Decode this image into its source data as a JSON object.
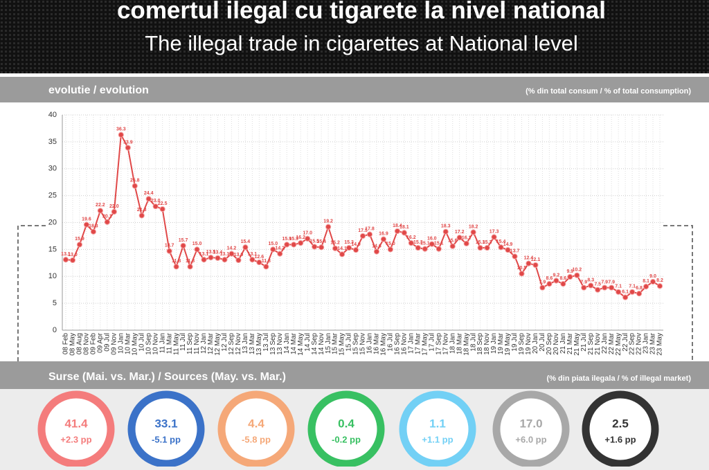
{
  "header": {
    "title": "comertul ilegal cu tigarete la nivel national",
    "subtitle": "The illegal trade in cigarettes at National level"
  },
  "chart_data": {
    "type": "line",
    "title": "evolutie / evolution",
    "unit_note": "(% din total consum / % of total consumption)",
    "color": "#e04848",
    "grid": true,
    "categories": [
      "08 Feb",
      "08 May",
      "08 Aug",
      "08 Nov",
      "09 Feb",
      "09 Apr",
      "09 Jul",
      "09 Nov",
      "10 Jan",
      "10 Mar",
      "10 May",
      "10 Jul",
      "10 Sep",
      "10 Nov",
      "11 Jan",
      "11 Mar",
      "11 May",
      "11 Jul",
      "11 Sep",
      "11 Nov",
      "12 Jan",
      "12 Mar",
      "12 May",
      "12 Jul",
      "12 Sep",
      "12 Nov",
      "13 Jan",
      "13 Mar",
      "13 May",
      "13 Jul",
      "13 Sep",
      "13 Nov",
      "14 Jan",
      "14 Mar",
      "14 May",
      "14 Jul",
      "14 Sep",
      "14 Nov",
      "15 Jan",
      "15 Mar",
      "15 May",
      "15 Jul",
      "15 Sep",
      "15 Nov",
      "16 Jan",
      "16 Mar",
      "16 May",
      "16 Jul",
      "16 Sep",
      "16 Nov",
      "17 Jan",
      "17 Mar",
      "17 May",
      "17 Jul",
      "17 Sep",
      "17 Nov",
      "18 Jan",
      "18 Mar",
      "18 May",
      "18 Jul",
      "18 Sep",
      "18 Nov",
      "19 Jan",
      "19 Mar",
      "19 May",
      "19 Jul",
      "19 Sep",
      "19 Nov",
      "20 Jan",
      "20 Jul",
      "20 Sep",
      "20 Nov",
      "21 Jan",
      "21 Mar",
      "21 May",
      "21 Jul",
      "21 Sep",
      "21 Nov",
      "22 Jan",
      "22 Mar",
      "22 May",
      "22 Jul",
      "22 Sep",
      "22 Nov",
      "23 Jan",
      "23 Mar",
      "23 May"
    ],
    "values": [
      13.1,
      13.0,
      15.9,
      19.6,
      18.3,
      22.2,
      20.1,
      22.0,
      36.3,
      33.9,
      26.8,
      21.3,
      24.4,
      23.0,
      22.5,
      14.7,
      11.8,
      15.7,
      11.8,
      15.0,
      13.1,
      13.5,
      13.4,
      13.1,
      14.2,
      13.0,
      15.4,
      13.1,
      12.6,
      11.8,
      15.0,
      14.2,
      15.9,
      15.9,
      16.2,
      17.0,
      15.5,
      15.4,
      19.2,
      15.2,
      14.1,
      15.3,
      14.9,
      17.5,
      17.8,
      14.6,
      16.9,
      15.0,
      18.4,
      18.1,
      16.2,
      15.3,
      15.1,
      16.0,
      15.1,
      18.3,
      15.6,
      17.2,
      16.1,
      18.2,
      15.3,
      15.3,
      17.3,
      15.4,
      14.9,
      13.7,
      10.5,
      12.4,
      12.1,
      7.9,
      8.6,
      9.2,
      8.6,
      9.9,
      10.2,
      7.9,
      8.3,
      7.5,
      7.9,
      7.9,
      7.1,
      6.1,
      7.1,
      6.8,
      8.1,
      9.0,
      8.2
    ],
    "value_labels": [
      "13.1",
      "13.0",
      "15.9",
      "19.6",
      "18.3",
      "22.2",
      "20.1",
      "22.0",
      "36.3",
      "33.9",
      "26.8",
      "21.3",
      "24.4",
      "23.0",
      "22.5",
      "14.7",
      "11.8",
      "15.7",
      "11.8",
      "15.0",
      "13.1",
      "13.5",
      "13.4",
      "13.1",
      "14.2",
      "13.0",
      "15.4",
      "13.1",
      "12.6",
      "11.8",
      "15.0",
      "14.2",
      "15.9",
      "15.9",
      "16.2",
      "17.0",
      "15.5",
      "15.4",
      "19.2",
      "15.2",
      "14.1",
      "15.3",
      "14.9",
      "17.5",
      "17.8",
      "14.6",
      "16.9",
      "15.0",
      "18.4",
      "18.1",
      "16.2",
      "15.3",
      "15.1",
      "16.0",
      "15.1",
      "18.3",
      "15.6",
      "17.2",
      "16.1",
      "18.2",
      "15.3",
      "15.3",
      "17.3",
      "15.4",
      "14.9",
      "13.7",
      "10.5",
      "12.4",
      "12.1",
      "7.9",
      "8.6",
      "9.2",
      "8.6",
      "9.9",
      "10.2",
      "7.9",
      "8.3",
      "7.5",
      "7.9",
      "7.9",
      "7.1",
      "6.1",
      "7.1",
      "6.8",
      "8.1",
      "9.0",
      "8.2"
    ],
    "ylim": [
      0,
      40
    ],
    "yticks": [
      0,
      5,
      10,
      15,
      20,
      25,
      30,
      35,
      40
    ]
  },
  "sources": {
    "title": "Surse (Mai. vs. Mar.) / Sources (May. vs. Mar.)",
    "unit_note": "(% din piata ilegala / % of illegal market)",
    "items": [
      {
        "value": "41.4",
        "change": "+2.3 pp",
        "color": "#f47c7c"
      },
      {
        "value": "33.1",
        "change": "-5.1 pp",
        "color": "#3b72c8"
      },
      {
        "value": "4.4",
        "change": "-5.8 pp",
        "color": "#f5a878"
      },
      {
        "value": "0.4",
        "change": "-0.2 pp",
        "color": "#38c062"
      },
      {
        "value": "1.1",
        "change": "+1.1 pp",
        "color": "#72d0f5"
      },
      {
        "value": "17.0",
        "change": "+6.0 pp",
        "color": "#a8a8a8"
      },
      {
        "value": "2.5",
        "change": "+1.6 pp",
        "color": "#333333"
      }
    ]
  }
}
